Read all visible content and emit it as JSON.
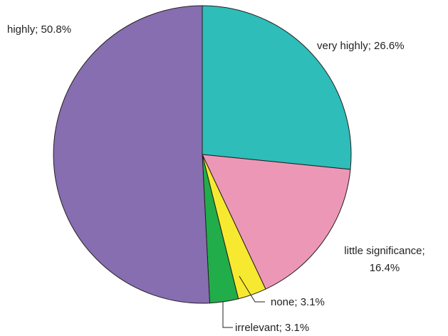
{
  "chart_data": {
    "type": "pie",
    "title": "",
    "slices": [
      {
        "label": "very highly",
        "value": 26.6,
        "label_text": "very highly; 26.6%",
        "color": "#2ebdb9"
      },
      {
        "label": "little significance",
        "value": 16.4,
        "label_lines": [
          "little significance;",
          "16.4%"
        ],
        "color": "#ed97b7"
      },
      {
        "label": "none",
        "value": 3.1,
        "label_text": "none; 3.1%",
        "color": "#f7e930"
      },
      {
        "label": "irrelevant",
        "value": 3.1,
        "label_text": "irrelevant; 3.1%",
        "color": "#21ad4a"
      },
      {
        "label": "highly",
        "value": 50.8,
        "label_text": "highly; 50.8%",
        "color": "#866eb1"
      }
    ],
    "start_angle": "12 o'clock",
    "direction": "clockwise",
    "legend": "none"
  }
}
